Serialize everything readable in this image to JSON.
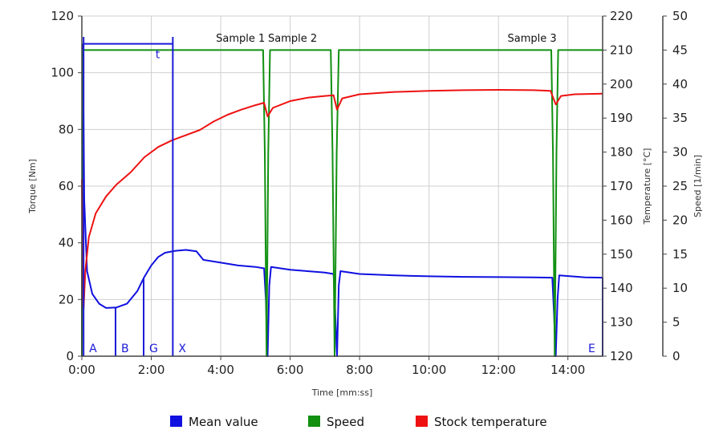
{
  "chart_data": {
    "type": "line",
    "xlabel": "Time [mm:ss]",
    "x_ticks": [
      "0:00",
      "2:00",
      "4:00",
      "6:00",
      "8:00",
      "10:00",
      "12:00",
      "14:00"
    ],
    "xlim_minutes": [
      0,
      15
    ],
    "axes": {
      "left": {
        "label": "Torque [Nm]",
        "range": [
          0,
          120
        ],
        "ticks": [
          "0",
          "20",
          "40",
          "60",
          "80",
          "100",
          "120"
        ]
      },
      "right1": {
        "label": "Temperature [°C]",
        "range": [
          120,
          220
        ],
        "ticks": [
          "120",
          "130",
          "140",
          "150",
          "160",
          "170",
          "180",
          "190",
          "200",
          "210",
          "220"
        ]
      },
      "right2": {
        "label": "Speed [1/min]",
        "range": [
          0,
          50
        ],
        "ticks": [
          "0",
          "5",
          "10",
          "15",
          "20",
          "25",
          "30",
          "35",
          "40",
          "45",
          "50"
        ]
      }
    },
    "grid": true,
    "legend_position": "bottom",
    "series": [
      {
        "name": "Mean value",
        "axis": "left",
        "color": "#1010e0",
        "points": [
          [
            0,
            0
          ],
          [
            0.03,
            110
          ],
          [
            0.07,
            55
          ],
          [
            0.15,
            30
          ],
          [
            0.3,
            22
          ],
          [
            0.5,
            18.5
          ],
          [
            0.7,
            17
          ],
          [
            1.0,
            17.2
          ],
          [
            1.3,
            18.5
          ],
          [
            1.6,
            23
          ],
          [
            1.8,
            28
          ],
          [
            2.0,
            32
          ],
          [
            2.2,
            35
          ],
          [
            2.4,
            36.5
          ],
          [
            2.7,
            37.2
          ],
          [
            3.0,
            37.5
          ],
          [
            3.3,
            37
          ],
          [
            3.5,
            34
          ],
          [
            4.0,
            33
          ],
          [
            4.5,
            32
          ],
          [
            5.0,
            31.5
          ],
          [
            5.25,
            31
          ],
          [
            5.3,
            20
          ],
          [
            5.35,
            0
          ],
          [
            5.4,
            25
          ],
          [
            5.45,
            31.5
          ],
          [
            6.0,
            30.5
          ],
          [
            6.5,
            30
          ],
          [
            7.0,
            29.5
          ],
          [
            7.25,
            29
          ],
          [
            7.3,
            15
          ],
          [
            7.35,
            0
          ],
          [
            7.4,
            25
          ],
          [
            7.45,
            30
          ],
          [
            8.0,
            29
          ],
          [
            9.0,
            28.5
          ],
          [
            10.0,
            28.2
          ],
          [
            11.0,
            28
          ],
          [
            12.0,
            27.9
          ],
          [
            13.0,
            27.8
          ],
          [
            13.55,
            27.7
          ],
          [
            13.6,
            15
          ],
          [
            13.65,
            0
          ],
          [
            13.7,
            20
          ],
          [
            13.75,
            28.5
          ],
          [
            14.5,
            27.8
          ],
          [
            15.0,
            27.7
          ]
        ]
      },
      {
        "name": "Speed",
        "axis": "right2",
        "color": "#119011",
        "points": [
          [
            0,
            0
          ],
          [
            0.02,
            45
          ],
          [
            5.22,
            45
          ],
          [
            5.27,
            30
          ],
          [
            5.32,
            0
          ],
          [
            5.37,
            30
          ],
          [
            5.42,
            45
          ],
          [
            7.17,
            45
          ],
          [
            7.22,
            30
          ],
          [
            7.28,
            0
          ],
          [
            7.34,
            30
          ],
          [
            7.4,
            45
          ],
          [
            13.52,
            45
          ],
          [
            13.57,
            30
          ],
          [
            13.62,
            0
          ],
          [
            13.67,
            30
          ],
          [
            13.72,
            45
          ],
          [
            15.0,
            45
          ]
        ]
      },
      {
        "name": "Stock temperature",
        "axis": "right1",
        "color": "#ee1111",
        "points": [
          [
            0,
            172
          ],
          [
            0.03,
            136
          ],
          [
            0.05,
            134
          ],
          [
            0.1,
            145
          ],
          [
            0.2,
            155
          ],
          [
            0.4,
            162
          ],
          [
            0.7,
            167
          ],
          [
            1.0,
            170.5
          ],
          [
            1.4,
            174
          ],
          [
            1.8,
            178.5
          ],
          [
            2.2,
            181.5
          ],
          [
            2.6,
            183.5
          ],
          [
            3.0,
            185
          ],
          [
            3.4,
            186.5
          ],
          [
            3.8,
            189
          ],
          [
            4.2,
            191
          ],
          [
            4.6,
            192.5
          ],
          [
            5.0,
            193.8
          ],
          [
            5.25,
            194.5
          ],
          [
            5.35,
            190.5
          ],
          [
            5.5,
            193
          ],
          [
            6.0,
            195
          ],
          [
            6.5,
            196
          ],
          [
            7.0,
            196.5
          ],
          [
            7.25,
            196.7
          ],
          [
            7.35,
            192.5
          ],
          [
            7.5,
            195.8
          ],
          [
            8.0,
            197
          ],
          [
            9.0,
            197.7
          ],
          [
            10.0,
            198
          ],
          [
            11.0,
            198.2
          ],
          [
            12.0,
            198.3
          ],
          [
            13.0,
            198.2
          ],
          [
            13.5,
            198
          ],
          [
            13.65,
            194
          ],
          [
            13.8,
            196.5
          ],
          [
            14.2,
            197
          ],
          [
            15.0,
            197.2
          ]
        ]
      }
    ],
    "annotations": [
      {
        "text": "Sample 1",
        "x": 4.5
      },
      {
        "text": "Sample 2",
        "x": 6.0
      },
      {
        "text": "Sample 3",
        "x": 12.9
      }
    ],
    "markers": [
      {
        "label": "A",
        "x": 0.05
      },
      {
        "label": "B",
        "x": 0.97
      },
      {
        "label": "G",
        "x": 1.78
      },
      {
        "label": "X",
        "x": 2.62
      },
      {
        "label": "E",
        "x": 15.0
      }
    ],
    "interval": {
      "label": "t",
      "x_start": 0.05,
      "x_end": 2.62,
      "torque_level": 108.5
    }
  }
}
